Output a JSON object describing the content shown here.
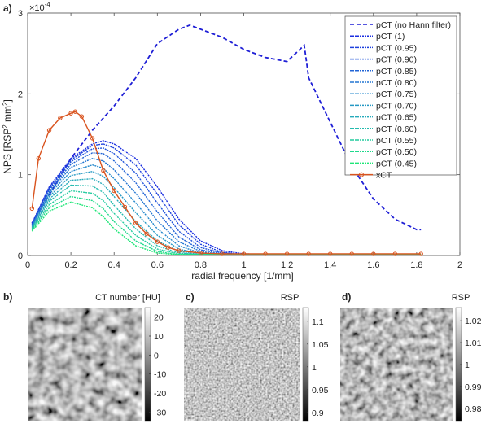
{
  "panel_labels": [
    "a)",
    "b)",
    "c)",
    "d)"
  ],
  "chart_data": {
    "type": "line",
    "title": "",
    "xlabel": "radial frequency [1/mm]",
    "ylabel": "NPS [RSP",
    "ylabel_sup1": "2",
    "ylabel_mid": " mm",
    "ylabel_sup2": "2",
    "ylabel_end": "]",
    "exponent_label": "×10",
    "exponent_power": "-4",
    "xlim": [
      0,
      2
    ],
    "ylim": [
      0,
      3
    ],
    "xticks": [
      "0",
      "0.2",
      "0.4",
      "0.6",
      "0.8",
      "1",
      "1.2",
      "1.4",
      "1.6",
      "1.8",
      "2"
    ],
    "yticks": [
      "0",
      "1",
      "2",
      "3"
    ],
    "grid": false,
    "legend_position": "top-right",
    "series": [
      {
        "name": "pCT (no Hann filter)",
        "color": "#1f1fd6",
        "style": "dashed",
        "x": [
          0.02,
          0.1,
          0.2,
          0.3,
          0.4,
          0.5,
          0.6,
          0.7,
          0.75,
          0.8,
          0.9,
          1.0,
          1.1,
          1.2,
          1.28,
          1.3,
          1.4,
          1.5,
          1.6,
          1.7,
          1.8,
          1.82
        ],
        "y": [
          0.4,
          0.75,
          1.2,
          1.55,
          1.85,
          2.2,
          2.62,
          2.8,
          2.85,
          2.8,
          2.7,
          2.55,
          2.45,
          2.4,
          2.6,
          2.2,
          1.65,
          1.1,
          0.7,
          0.45,
          0.32,
          0.32
        ]
      },
      {
        "name": "pCT (1)",
        "color": "#1b2ee0",
        "style": "dotted",
        "x": [
          0.02,
          0.1,
          0.2,
          0.3,
          0.35,
          0.4,
          0.5,
          0.6,
          0.7,
          0.8,
          0.9,
          1.0,
          1.2,
          1.4,
          1.6,
          1.82
        ],
        "y": [
          0.4,
          0.85,
          1.2,
          1.38,
          1.42,
          1.38,
          1.2,
          0.85,
          0.45,
          0.18,
          0.06,
          0.02,
          0.01,
          0.01,
          0.01,
          0.01
        ]
      },
      {
        "name": "pCT (0.95)",
        "color": "#1d40dd",
        "style": "dotted",
        "x": [
          0.02,
          0.1,
          0.2,
          0.3,
          0.35,
          0.4,
          0.5,
          0.6,
          0.7,
          0.8,
          0.9,
          1.0,
          1.2,
          1.4,
          1.6,
          1.82
        ],
        "y": [
          0.39,
          0.84,
          1.18,
          1.36,
          1.38,
          1.33,
          1.12,
          0.76,
          0.38,
          0.14,
          0.04,
          0.01,
          0.01,
          0.01,
          0.01,
          0.01
        ]
      },
      {
        "name": "pCT (0.90)",
        "color": "#1f52da",
        "style": "dotted",
        "x": [
          0.02,
          0.1,
          0.2,
          0.3,
          0.35,
          0.4,
          0.5,
          0.6,
          0.7,
          0.8,
          0.9,
          1.0,
          1.2,
          1.4,
          1.6,
          1.82
        ],
        "y": [
          0.38,
          0.82,
          1.16,
          1.32,
          1.33,
          1.26,
          1.02,
          0.65,
          0.3,
          0.1,
          0.03,
          0.01,
          0.01,
          0.01,
          0.01,
          0.01
        ]
      },
      {
        "name": "pCT (0.85)",
        "color": "#2164d6",
        "style": "dotted",
        "x": [
          0.02,
          0.1,
          0.2,
          0.3,
          0.35,
          0.4,
          0.5,
          0.6,
          0.7,
          0.8,
          0.9,
          1.0,
          1.2,
          1.4,
          1.6,
          1.82
        ],
        "y": [
          0.38,
          0.8,
          1.13,
          1.27,
          1.26,
          1.17,
          0.9,
          0.54,
          0.23,
          0.07,
          0.02,
          0.01,
          0.01,
          0.01,
          0.01,
          0.01
        ]
      },
      {
        "name": "pCT (0.80)",
        "color": "#2376d2",
        "style": "dotted",
        "x": [
          0.02,
          0.1,
          0.2,
          0.3,
          0.35,
          0.4,
          0.5,
          0.6,
          0.7,
          0.8,
          0.9,
          1.0,
          1.2,
          1.4,
          1.6,
          1.82
        ],
        "y": [
          0.37,
          0.78,
          1.09,
          1.2,
          1.17,
          1.06,
          0.77,
          0.43,
          0.17,
          0.05,
          0.01,
          0.01,
          0.01,
          0.01,
          0.01,
          0.01
        ]
      },
      {
        "name": "pCT (0.75)",
        "color": "#2488cc",
        "style": "dotted",
        "x": [
          0.02,
          0.1,
          0.2,
          0.3,
          0.35,
          0.4,
          0.5,
          0.6,
          0.7,
          0.8,
          0.9,
          1.0,
          1.2,
          1.4,
          1.6,
          1.82
        ],
        "y": [
          0.36,
          0.76,
          1.04,
          1.12,
          1.08,
          0.95,
          0.65,
          0.33,
          0.12,
          0.03,
          0.01,
          0.01,
          0.01,
          0.01,
          0.01,
          0.01
        ]
      },
      {
        "name": "pCT (0.70)",
        "color": "#2599c4",
        "style": "dotted",
        "x": [
          0.02,
          0.1,
          0.2,
          0.3,
          0.35,
          0.4,
          0.5,
          0.6,
          0.7,
          0.8,
          0.9,
          1.0,
          1.2,
          1.4,
          1.6,
          1.82
        ],
        "y": [
          0.35,
          0.73,
          0.99,
          1.04,
          0.98,
          0.84,
          0.53,
          0.25,
          0.08,
          0.02,
          0.01,
          0.01,
          0.01,
          0.01,
          0.01,
          0.01
        ]
      },
      {
        "name": "pCT (0.65)",
        "color": "#25aabb",
        "style": "dotted",
        "x": [
          0.02,
          0.1,
          0.2,
          0.3,
          0.35,
          0.4,
          0.5,
          0.6,
          0.7,
          0.8,
          0.9,
          1.0,
          1.2,
          1.4,
          1.6,
          1.82
        ],
        "y": [
          0.34,
          0.7,
          0.93,
          0.95,
          0.88,
          0.73,
          0.42,
          0.18,
          0.05,
          0.01,
          0.01,
          0.01,
          0.01,
          0.01,
          0.01,
          0.01
        ]
      },
      {
        "name": "pCT (0.60)",
        "color": "#24bbae",
        "style": "dotted",
        "x": [
          0.02,
          0.1,
          0.2,
          0.3,
          0.35,
          0.4,
          0.5,
          0.6,
          0.7,
          0.8,
          0.9,
          1.0,
          1.2,
          1.4,
          1.6,
          1.82
        ],
        "y": [
          0.33,
          0.67,
          0.87,
          0.86,
          0.78,
          0.62,
          0.33,
          0.12,
          0.03,
          0.01,
          0.01,
          0.01,
          0.01,
          0.01,
          0.01,
          0.01
        ]
      },
      {
        "name": "pCT (0.55)",
        "color": "#22cb9e",
        "style": "dotted",
        "x": [
          0.02,
          0.1,
          0.2,
          0.3,
          0.35,
          0.4,
          0.5,
          0.6,
          0.7,
          0.8,
          0.9,
          1.0,
          1.2,
          1.4,
          1.6,
          1.82
        ],
        "y": [
          0.32,
          0.63,
          0.8,
          0.77,
          0.68,
          0.52,
          0.25,
          0.08,
          0.02,
          0.01,
          0.01,
          0.01,
          0.01,
          0.01,
          0.01,
          0.01
        ]
      },
      {
        "name": "pCT (0.50)",
        "color": "#20d98c",
        "style": "dotted",
        "x": [
          0.02,
          0.1,
          0.2,
          0.3,
          0.35,
          0.4,
          0.5,
          0.6,
          0.7,
          0.8,
          0.9,
          1.0,
          1.2,
          1.4,
          1.6,
          1.82
        ],
        "y": [
          0.31,
          0.59,
          0.73,
          0.68,
          0.58,
          0.42,
          0.18,
          0.05,
          0.01,
          0.01,
          0.01,
          0.01,
          0.01,
          0.01,
          0.01,
          0.01
        ]
      },
      {
        "name": "pCT (0.45)",
        "color": "#1ee677",
        "style": "dotted",
        "x": [
          0.02,
          0.1,
          0.2,
          0.3,
          0.35,
          0.4,
          0.5,
          0.6,
          0.7,
          0.8,
          0.9,
          1.0,
          1.2,
          1.4,
          1.6,
          1.82
        ],
        "y": [
          0.3,
          0.55,
          0.66,
          0.59,
          0.48,
          0.33,
          0.12,
          0.03,
          0.01,
          0.01,
          0.01,
          0.01,
          0.01,
          0.01,
          0.01,
          0.01
        ]
      },
      {
        "name": "xCT",
        "color": "#d9531e",
        "style": "solid-marker",
        "x": [
          0.02,
          0.05,
          0.1,
          0.15,
          0.2,
          0.22,
          0.25,
          0.3,
          0.35,
          0.4,
          0.45,
          0.5,
          0.55,
          0.6,
          0.65,
          0.7,
          0.8,
          0.9,
          1.0,
          1.1,
          1.2,
          1.3,
          1.4,
          1.5,
          1.6,
          1.7,
          1.82
        ],
        "y": [
          0.58,
          1.2,
          1.55,
          1.7,
          1.76,
          1.78,
          1.72,
          1.45,
          1.05,
          0.8,
          0.6,
          0.4,
          0.27,
          0.17,
          0.1,
          0.06,
          0.03,
          0.02,
          0.02,
          0.02,
          0.02,
          0.02,
          0.02,
          0.02,
          0.02,
          0.02,
          0.02
        ]
      }
    ]
  },
  "images": [
    {
      "label": "b)",
      "colorbar_title": "CT number [HU]",
      "colorbar_ticks": [
        "20",
        "10",
        "0",
        "-10",
        "-20",
        "-30"
      ],
      "colorbar_range": [
        -35,
        25
      ]
    },
    {
      "label": "c)",
      "colorbar_title": "RSP",
      "colorbar_ticks": [
        "1.1",
        "1.05",
        "1",
        "0.95",
        "0.9"
      ],
      "colorbar_range": [
        0.88,
        1.13
      ]
    },
    {
      "label": "d)",
      "colorbar_title": "RSP",
      "colorbar_ticks": [
        "1.02",
        "1.01",
        "1",
        "0.99",
        "0.98"
      ],
      "colorbar_range": [
        0.974,
        1.026
      ]
    }
  ]
}
